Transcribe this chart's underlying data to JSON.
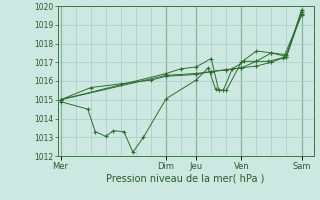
{
  "xlabel": "Pression niveau de la mer( hPa )",
  "bg_color": "#cce8e0",
  "grid_color": "#aacccc",
  "line_color": "#2d6e2d",
  "ylim": [
    1012,
    1020
  ],
  "yticks": [
    1012,
    1013,
    1014,
    1015,
    1016,
    1017,
    1018,
    1019,
    1020
  ],
  "day_labels": [
    "Mer",
    "Dim",
    "Jeu",
    "Ven",
    "Sam"
  ],
  "day_positions": [
    0.0,
    3.5,
    4.5,
    6.0,
    8.0
  ],
  "xlim": [
    -0.1,
    8.4
  ],
  "line1_x": [
    0,
    0.9,
    1.15,
    1.5,
    1.75,
    2.1,
    2.4,
    2.75,
    3.5,
    4.5,
    4.9,
    5.15,
    5.4,
    5.7,
    6.1,
    6.5,
    6.9,
    7.4,
    8.0
  ],
  "line1_y": [
    1014.9,
    1014.5,
    1013.3,
    1013.05,
    1013.35,
    1013.3,
    1012.2,
    1013.0,
    1015.05,
    1016.05,
    1016.7,
    1015.55,
    1015.5,
    1016.65,
    1017.05,
    1017.05,
    1017.05,
    1017.25,
    1019.5
  ],
  "line2_x": [
    0,
    1.0,
    2.0,
    3.0,
    3.5,
    4.5,
    5.0,
    5.5,
    6.0,
    6.5,
    7.0,
    7.5,
    8.0
  ],
  "line2_y": [
    1015.0,
    1015.65,
    1015.85,
    1016.05,
    1016.25,
    1016.35,
    1016.5,
    1016.6,
    1016.7,
    1017.05,
    1017.5,
    1017.4,
    1019.7
  ],
  "line3_x": [
    0,
    3.5,
    4.5,
    5.0,
    5.5,
    6.0,
    6.5,
    7.0,
    7.5,
    8.0
  ],
  "line3_y": [
    1015.0,
    1016.3,
    1016.4,
    1016.5,
    1016.6,
    1016.7,
    1016.8,
    1017.0,
    1017.3,
    1019.6
  ],
  "line4_x": [
    0,
    3.5,
    4.0,
    4.5,
    5.0,
    5.25,
    5.5,
    6.0,
    6.5,
    7.0,
    7.5,
    8.0
  ],
  "line4_y": [
    1015.0,
    1016.4,
    1016.65,
    1016.75,
    1017.2,
    1015.5,
    1015.5,
    1017.0,
    1017.6,
    1017.5,
    1017.3,
    1019.8
  ]
}
